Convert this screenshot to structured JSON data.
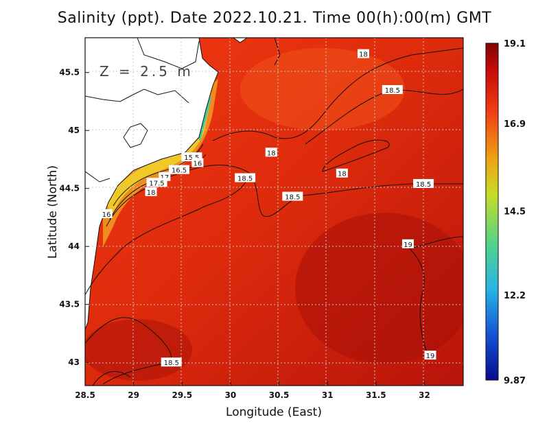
{
  "title": "Salinity (ppt). Date 2022.10.21. Time 00(h):00(m) GMT",
  "depth_label": "Z = 2.5 m",
  "x_axis": {
    "label": "Longitude (East)",
    "ticks": [
      "28.5",
      "29",
      "29.5",
      "30",
      "30.5",
      "31",
      "31.5",
      "32"
    ]
  },
  "y_axis": {
    "label": "Latitude (North)",
    "ticks": [
      "45.5",
      "45",
      "44.5",
      "44",
      "43.5",
      "43"
    ]
  },
  "colorbar": {
    "ticks": [
      "19.1",
      "16.9",
      "14.5",
      "12.2",
      "9.87"
    ],
    "min": 9.87,
    "max": 19.1,
    "colors": [
      "#0a0a8c",
      "#1450d2",
      "#28b4e6",
      "#50d28c",
      "#c8dc28",
      "#f0a014",
      "#f03c14",
      "#c80a0a",
      "#820505"
    ]
  },
  "chart_data": {
    "type": "heatmap",
    "title": "Salinity (ppt). Date 2022.10.21. Time 00(h):00(m) GMT",
    "xlabel": "Longitude (East)",
    "ylabel": "Latitude (North)",
    "xlim": [
      28.5,
      32.4
    ],
    "ylim": [
      42.8,
      45.8
    ],
    "value_range": [
      9.87,
      19.1
    ],
    "grid": true,
    "contour_labels": [
      {
        "value": "18",
        "lon": 31.37,
        "lat": 45.66
      },
      {
        "value": "18.5",
        "lon": 31.67,
        "lat": 45.35
      },
      {
        "value": "18",
        "lon": 30.42,
        "lat": 44.81
      },
      {
        "value": "18",
        "lon": 31.15,
        "lat": 44.63
      },
      {
        "value": "18.5",
        "lon": 31.99,
        "lat": 44.54
      },
      {
        "value": "18.5",
        "lon": 30.15,
        "lat": 44.59
      },
      {
        "value": "18.5",
        "lon": 30.64,
        "lat": 44.43
      },
      {
        "value": "15.5",
        "lon": 29.6,
        "lat": 44.77
      },
      {
        "value": "16",
        "lon": 29.66,
        "lat": 44.72
      },
      {
        "value": "16.5",
        "lon": 29.47,
        "lat": 44.66
      },
      {
        "value": "17",
        "lon": 29.32,
        "lat": 44.6
      },
      {
        "value": "17.5",
        "lon": 29.24,
        "lat": 44.55
      },
      {
        "value": "18",
        "lon": 29.18,
        "lat": 44.47
      },
      {
        "value": "16",
        "lon": 28.72,
        "lat": 44.28
      },
      {
        "value": "19",
        "lon": 31.83,
        "lat": 44.02
      },
      {
        "value": "19",
        "lon": 32.06,
        "lat": 43.06
      },
      {
        "value": "18.5",
        "lon": 29.39,
        "lat": 43.0
      }
    ]
  }
}
